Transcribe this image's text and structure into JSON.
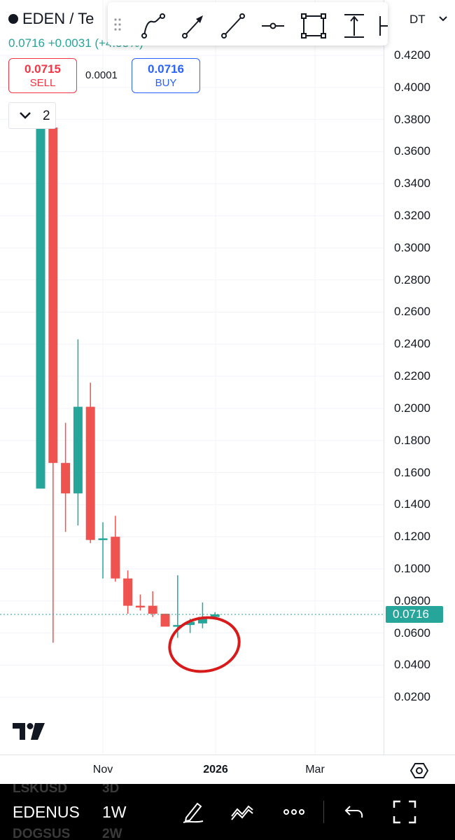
{
  "header": {
    "symbol": "EDEN / Te",
    "price_change": "0.0716 +0.0031 (+4.53%)",
    "sell": {
      "price": "0.0715",
      "label": "SELL"
    },
    "spread": "0.0001",
    "buy": {
      "price": "0.0716",
      "label": "BUY"
    },
    "collapse_count": "2",
    "currency": "DT"
  },
  "drawing_toolbar": {
    "tools": [
      "curve-icon",
      "arrow-icon",
      "trend-line-icon",
      "horizontal-ray-icon",
      "rectangle-icon",
      "price-range-icon",
      "date-range-icon"
    ]
  },
  "price_axis": {
    "ticks": [
      "0.4200",
      "0.4000",
      "0.3800",
      "0.3600",
      "0.3400",
      "0.3200",
      "0.3000",
      "0.2800",
      "0.2600",
      "0.2400",
      "0.2200",
      "0.2000",
      "0.1800",
      "0.1600",
      "0.1400",
      "0.1200",
      "0.1000",
      "0.0800",
      "0.0600",
      "0.0400",
      "0.0200"
    ],
    "last_price": "0.0716"
  },
  "time_axis": {
    "labels": [
      {
        "text": "Nov",
        "bold": false
      },
      {
        "text": "2026",
        "bold": true
      },
      {
        "text": "Mar",
        "bold": false
      }
    ]
  },
  "bottom_bar": {
    "ghost_above": [
      "LSKUSD",
      "3D"
    ],
    "symbol": "EDENUS",
    "interval": "1W",
    "ghost_below": [
      "DOGSUS",
      "2W"
    ],
    "icons": [
      "pen-icon",
      "indicators-icon",
      "more-icon",
      "undo-icon",
      "fullscreen-icon"
    ]
  },
  "colors": {
    "up": "#26a69a",
    "down": "#ef5350",
    "annotation": "#d91a1a",
    "background": "#ffffff",
    "grid": "#f0f3fa"
  },
  "chart_data": {
    "type": "candlestick",
    "interval": "1W",
    "y_range": [
      0.0,
      0.42
    ],
    "grid": true,
    "last_price": 0.0716,
    "candles": [
      {
        "open": 0.15,
        "high": 0.375,
        "low": 0.15,
        "close": 0.375
      },
      {
        "open": 0.375,
        "high": 0.375,
        "low": 0.054,
        "close": 0.166
      },
      {
        "open": 0.166,
        "high": 0.191,
        "low": 0.123,
        "close": 0.147
      },
      {
        "open": 0.147,
        "high": 0.243,
        "low": 0.127,
        "close": 0.201
      },
      {
        "open": 0.201,
        "high": 0.216,
        "low": 0.116,
        "close": 0.118
      },
      {
        "open": 0.118,
        "high": 0.129,
        "low": 0.094,
        "close": 0.119
      },
      {
        "open": 0.12,
        "high": 0.133,
        "low": 0.092,
        "close": 0.094
      },
      {
        "open": 0.094,
        "high": 0.099,
        "low": 0.072,
        "close": 0.077
      },
      {
        "open": 0.077,
        "high": 0.084,
        "low": 0.074,
        "close": 0.076
      },
      {
        "open": 0.077,
        "high": 0.086,
        "low": 0.07,
        "close": 0.072
      },
      {
        "open": 0.072,
        "high": 0.072,
        "low": 0.065,
        "close": 0.064
      },
      {
        "open": 0.064,
        "high": 0.096,
        "low": 0.057,
        "close": 0.065
      },
      {
        "open": 0.065,
        "high": 0.069,
        "low": 0.06,
        "close": 0.067
      },
      {
        "open": 0.066,
        "high": 0.079,
        "low": 0.063,
        "close": 0.07
      },
      {
        "open": 0.07,
        "high": 0.073,
        "low": 0.069,
        "close": 0.0716
      }
    ]
  }
}
